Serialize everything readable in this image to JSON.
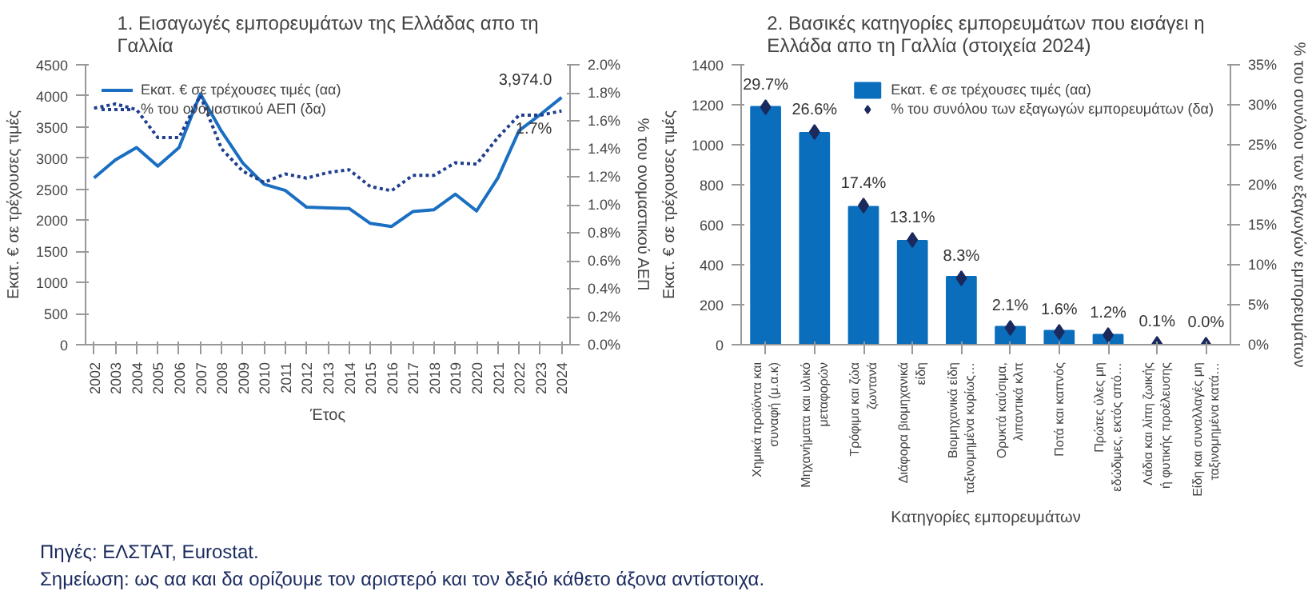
{
  "chart_data": [
    {
      "type": "line",
      "title": "1. Εισαγωγές εμπορευμάτων της Ελλάδας απο τη Γαλλία",
      "xlabel": "Έτος",
      "ylabel": "Εκατ. € σε τρέχουσες τιμές",
      "y2label": "% του ονομαστικού ΑΕΠ",
      "x": [
        2002,
        2003,
        2004,
        2005,
        2006,
        2007,
        2008,
        2009,
        2010,
        2011,
        2012,
        2013,
        2014,
        2015,
        2016,
        2017,
        2018,
        2019,
        2020,
        2021,
        2022,
        2023,
        2024
      ],
      "xlim": [
        2001.6,
        2024.4
      ],
      "xticks": [
        2002,
        2003,
        2004,
        2005,
        2006,
        2007,
        2008,
        2009,
        2010,
        2011,
        2012,
        2013,
        2014,
        2015,
        2016,
        2017,
        2018,
        2019,
        2020,
        2021,
        2022,
        2023,
        2024
      ],
      "ylim": [
        0,
        4500
      ],
      "yticks": [
        0,
        500,
        1000,
        1500,
        2000,
        2500,
        3000,
        3500,
        4000,
        4500
      ],
      "y2lim": [
        0,
        2.0
      ],
      "y2ticks": [
        {
          "value": 0,
          "label": "0.0%"
        },
        {
          "value": 0.2,
          "label": "0.2%"
        },
        {
          "value": 0.4,
          "label": "0.4%"
        },
        {
          "value": 0.6,
          "label": "0.6%"
        },
        {
          "value": 0.8,
          "label": "0.8%"
        },
        {
          "value": 1.0,
          "label": "1.0%"
        },
        {
          "value": 1.2,
          "label": "1.2%"
        },
        {
          "value": 1.4,
          "label": "1.4%"
        },
        {
          "value": 1.6,
          "label": "1.6%"
        },
        {
          "value": 1.8,
          "label": "1.8%"
        },
        {
          "value": 2.0,
          "label": "2.0%"
        }
      ],
      "grid": false,
      "legend": "top left",
      "marker": "none",
      "series": [
        {
          "name": "Εκατ. € σε τρέχουσες τιμές (αα)",
          "color": "#1a6fc2",
          "line_style": "solid",
          "values": [
            2680,
            2970,
            3170,
            2870,
            3170,
            4030,
            3430,
            2920,
            2580,
            2480,
            2210,
            2200,
            2190,
            1950,
            1900,
            2140,
            2170,
            2420,
            2150,
            2680,
            3440,
            3700,
            3974
          ],
          "value_labels": [
            null,
            null,
            null,
            null,
            null,
            null,
            null,
            null,
            null,
            null,
            null,
            null,
            null,
            null,
            null,
            null,
            null,
            null,
            null,
            null,
            null,
            null,
            "3,974.0"
          ]
        },
        {
          "name": "% του ονομαστικού ΑΕΠ (δα)",
          "color": "#1f3f8f",
          "line_style": "dotted",
          "axis": "y2",
          "values": [
            1.69,
            1.72,
            1.68,
            1.48,
            1.48,
            1.78,
            1.4,
            1.24,
            1.16,
            1.22,
            1.19,
            1.23,
            1.25,
            1.13,
            1.1,
            1.21,
            1.21,
            1.3,
            1.29,
            1.48,
            1.64,
            1.64,
            1.67
          ],
          "value_labels": [
            null,
            null,
            null,
            null,
            null,
            null,
            null,
            null,
            null,
            null,
            null,
            null,
            null,
            null,
            null,
            null,
            null,
            null,
            null,
            null,
            null,
            null,
            "1.7%"
          ]
        }
      ]
    },
    {
      "type": "bar",
      "title": "2. Βασικές κατηγορίες εμπορευμάτων που εισάγει η Ελλάδα απο τη Γαλλία (στοιχεία 2024)",
      "xlabel": "Κατηγορίες εμπορευμάτων",
      "ylabel": "Εκατ. € σε τρέχουσες τιμές",
      "y2label": "% του συνόλου των εξαγωγών εμπορευμάτων",
      "categories": [
        "Χημικά προϊόντα και συναφή (μ.α.κ)",
        "Μηχανήματα και υλικό μεταφορών",
        "Τρόφιμα και ζώα ζωντανά",
        "Διάφορα βιομηχανικά είδη",
        "Βιομηχανικά είδη ταξινομημένα κυρίως…",
        "Ορυκτά καύσιμα, λιπαντικά κλπ",
        "Ποτά και καπνός",
        "Πρώτες ύλες μη εδώδιμες, εκτός από…",
        "Λάδια και λίπη ζωικής ή φυτικής προέλευσης",
        "Είδη και συναλλαγές μη ταξινομημένα κατά…"
      ],
      "ylim": [
        0,
        1400
      ],
      "yticks": [
        0,
        200,
        400,
        600,
        800,
        1000,
        1200,
        1400
      ],
      "y2lim": [
        0,
        35
      ],
      "y2ticks": [
        {
          "value": 0,
          "label": "0%"
        },
        {
          "value": 5,
          "label": "5%"
        },
        {
          "value": 10,
          "label": "10%"
        },
        {
          "value": 15,
          "label": "15%"
        },
        {
          "value": 20,
          "label": "20%"
        },
        {
          "value": 25,
          "label": "25%"
        },
        {
          "value": 30,
          "label": "30%"
        },
        {
          "value": 35,
          "label": "35%"
        }
      ],
      "grid": false,
      "legend": "top right",
      "series": [
        {
          "name": "Εκατ. € σε τρέχουσες τιμές (αα)",
          "color": "#0a6ebd",
          "values": [
            1190,
            1060,
            690,
            520,
            340,
            90,
            70,
            50,
            0,
            0
          ]
        },
        {
          "name": "% του συνόλου των εξαγωγών εμπορευμάτων (δα)",
          "type": "scatter",
          "marker": "diamond",
          "color": "#1b2a5e",
          "axis": "y2",
          "values": [
            29.7,
            26.6,
            17.4,
            13.1,
            8.3,
            2.1,
            1.6,
            1.2,
            0.1,
            0.0
          ],
          "value_labels": [
            "29.7%",
            "26.6%",
            "17.4%",
            "13.1%",
            "8.3%",
            "2.1%",
            "1.6%",
            "1.2%",
            "0.1%",
            "0.0%"
          ]
        }
      ],
      "annotations": [
        "Πηγές: ΕΛΣΤΑΤ, Eurostat.",
        "Σημείωση: ως αα και δα ορίζουμε τον αριστερό και τον δεξιό κάθετο άξονα αντίστοιχα."
      ]
    }
  ]
}
